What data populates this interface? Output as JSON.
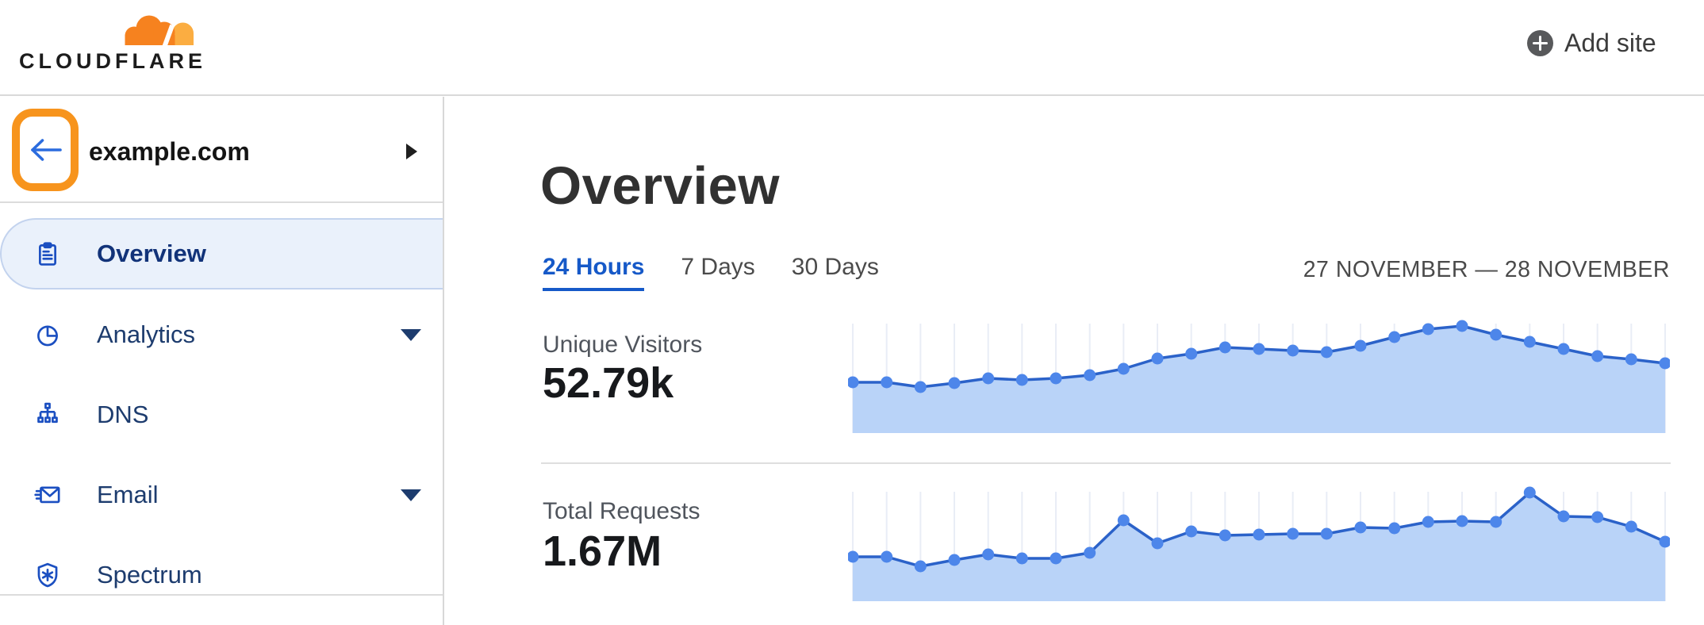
{
  "theme": {
    "brand_orange": "#f6821f",
    "brand_orange_light": "#fbad41",
    "annotation_orange": "#f7941d",
    "accent_blue": "#1659c8",
    "icon_blue": "#1b4fc1",
    "nav_navy": "#1d3c6e",
    "back_arrow_blue": "#2b6cde",
    "chart_line": "#2b62c9",
    "chart_dot": "#4d86ea",
    "chart_fill": "#b9d3f8",
    "chart_gridline": "#e9edf6"
  },
  "header": {
    "logo_text": "CLOUDFLARE",
    "add_site_label": "Add site"
  },
  "sidebar": {
    "site_name": "example.com",
    "items": [
      {
        "label": "Overview",
        "icon": "clipboard-icon",
        "active": true,
        "has_caret": false
      },
      {
        "label": "Analytics",
        "icon": "pie-chart-icon",
        "active": false,
        "has_caret": true
      },
      {
        "label": "DNS",
        "icon": "network-icon",
        "active": false,
        "has_caret": false
      },
      {
        "label": "Email",
        "icon": "envelope-icon",
        "active": false,
        "has_caret": true
      },
      {
        "label": "Spectrum",
        "icon": "shield-icon",
        "active": false,
        "has_caret": false
      }
    ]
  },
  "main": {
    "title": "Overview",
    "tabs": [
      {
        "label": "24 Hours",
        "active": true
      },
      {
        "label": "7 Days",
        "active": false
      },
      {
        "label": "30 Days",
        "active": false
      }
    ],
    "date_range": "27 NOVEMBER — 28 NOVEMBER",
    "metrics": [
      {
        "label": "Unique Visitors",
        "value": "52.79k"
      },
      {
        "label": "Total Requests",
        "value": "1.67M"
      }
    ]
  },
  "chart_data": [
    {
      "type": "area",
      "title": "Unique Visitors",
      "total_shown": "52.79k",
      "time_window": "24 Hours (27 November — 28 November)",
      "points": 25,
      "axis_labels": "none shown (sparkline style, vertical gridline at each sample)",
      "scale_note": "relative heights 0–140, no numeric y-axis displayed",
      "values_rel": [
        64,
        64,
        58,
        63,
        69,
        67,
        69,
        73,
        81,
        94,
        100,
        108,
        106,
        104,
        102,
        110,
        121,
        131,
        135,
        124,
        115,
        106,
        97,
        93,
        88
      ]
    },
    {
      "type": "area",
      "title": "Total Requests",
      "total_shown": "1.67M",
      "time_window": "24 Hours (27 November — 28 November)",
      "points": 25,
      "axis_labels": "none shown (sparkline style, vertical gridline at each sample)",
      "scale_note": "relative heights 0–140, no numeric y-axis displayed",
      "values_rel": [
        56,
        56,
        44,
        52,
        59,
        54,
        54,
        61,
        102,
        73,
        88,
        83,
        84,
        85,
        85,
        93,
        92,
        100,
        101,
        100,
        137,
        107,
        106,
        94,
        75
      ]
    }
  ]
}
